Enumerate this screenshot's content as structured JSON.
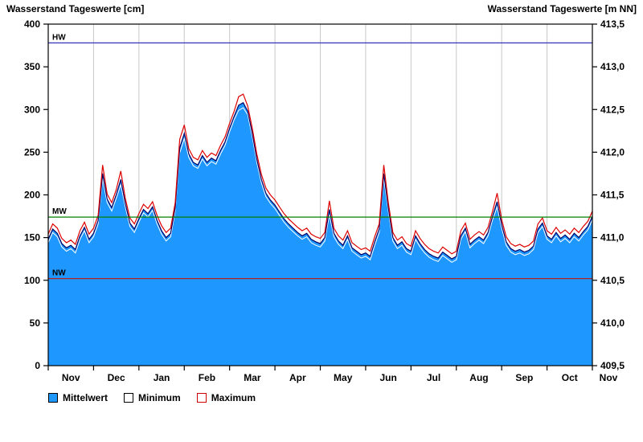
{
  "chart_data": {
    "type": "area",
    "title_left": "Wasserstand Tageswerte [cm]",
    "title_right": "Wasserstand Tageswerte [m NN]",
    "x_axis": {
      "month_labels": [
        "Nov",
        "Dec",
        "Jan",
        "Feb",
        "Mar",
        "Apr",
        "May",
        "Jun",
        "Jul",
        "Aug",
        "Sep",
        "Oct",
        "Nov"
      ]
    },
    "y_axis_left": {
      "unit": "cm",
      "min": 0,
      "max": 400,
      "step": 50,
      "tick_labels": [
        "0",
        "50",
        "100",
        "150",
        "200",
        "250",
        "300",
        "350",
        "400"
      ]
    },
    "y_axis_right": {
      "unit": "m NN",
      "min": 409.5,
      "max": 413.5,
      "step": 0.5,
      "tick_labels": [
        "409,5",
        "410,0",
        "410,5",
        "411,0",
        "411,5",
        "412,0",
        "412,5",
        "413,0",
        "413,5"
      ]
    },
    "reference_lines": [
      {
        "name": "HW",
        "value": 378,
        "color": "#3333bb"
      },
      {
        "name": "MW",
        "value": 174,
        "color": "#008000"
      },
      {
        "name": "NW",
        "value": 102,
        "color": "#b22222"
      }
    ],
    "colors": {
      "grid": "#c8c8c8",
      "border": "#000000",
      "background": "#ffffff"
    },
    "series": [
      {
        "name": "Mittelwert",
        "style": "area",
        "color": "#1e97ff",
        "line_color": "#000066",
        "values": [
          148,
          160,
          155,
          143,
          138,
          141,
          136,
          152,
          162,
          148,
          155,
          170,
          225,
          195,
          185,
          200,
          218,
          190,
          167,
          160,
          172,
          183,
          178,
          186,
          170,
          158,
          150,
          155,
          185,
          255,
          272,
          248,
          238,
          235,
          246,
          238,
          243,
          240,
          252,
          262,
          278,
          292,
          305,
          308,
          298,
          272,
          242,
          218,
          202,
          194,
          188,
          180,
          172,
          166,
          161,
          156,
          152,
          155,
          148,
          145,
          143,
          150,
          183,
          155,
          146,
          141,
          152,
          138,
          134,
          130,
          132,
          128,
          145,
          160,
          225,
          185,
          150,
          141,
          145,
          137,
          134,
          152,
          143,
          136,
          131,
          128,
          126,
          133,
          129,
          125,
          128,
          152,
          161,
          142,
          147,
          151,
          147,
          156,
          175,
          192,
          165,
          145,
          137,
          134,
          136,
          133,
          135,
          140,
          160,
          167,
          152,
          148,
          156,
          149,
          153,
          148,
          155,
          150,
          157,
          163,
          175
        ]
      },
      {
        "name": "Minimum",
        "style": "line",
        "color": "#ffffff",
        "values": [
          144,
          156,
          151,
          139,
          134,
          137,
          132,
          148,
          158,
          144,
          151,
          166,
          219,
          191,
          181,
          196,
          212,
          186,
          163,
          156,
          168,
          179,
          174,
          182,
          166,
          154,
          146,
          151,
          181,
          249,
          266,
          244,
          234,
          231,
          242,
          234,
          239,
          236,
          248,
          258,
          274,
          288,
          299,
          302,
          294,
          268,
          238,
          214,
          198,
          190,
          184,
          176,
          168,
          162,
          157,
          152,
          148,
          151,
          144,
          141,
          139,
          146,
          177,
          151,
          142,
          137,
          148,
          134,
          130,
          126,
          128,
          124,
          141,
          156,
          219,
          181,
          146,
          137,
          141,
          133,
          130,
          148,
          139,
          132,
          127,
          124,
          122,
          129,
          125,
          121,
          124,
          148,
          157,
          138,
          143,
          147,
          143,
          152,
          171,
          186,
          161,
          141,
          133,
          130,
          132,
          129,
          131,
          136,
          156,
          163,
          148,
          144,
          152,
          145,
          149,
          144,
          151,
          146,
          153,
          159,
          171
        ]
      },
      {
        "name": "Maximum",
        "style": "line",
        "color": "#dd0000",
        "values": [
          154,
          166,
          161,
          149,
          144,
          147,
          142,
          158,
          168,
          154,
          161,
          176,
          235,
          201,
          191,
          206,
          228,
          196,
          173,
          166,
          178,
          189,
          184,
          192,
          176,
          164,
          156,
          161,
          191,
          265,
          282,
          254,
          244,
          241,
          252,
          244,
          249,
          246,
          258,
          268,
          284,
          298,
          315,
          318,
          304,
          278,
          248,
          224,
          208,
          200,
          194,
          186,
          178,
          172,
          167,
          162,
          158,
          161,
          154,
          151,
          149,
          156,
          193,
          161,
          152,
          147,
          158,
          144,
          140,
          136,
          138,
          134,
          151,
          166,
          235,
          191,
          156,
          147,
          151,
          143,
          140,
          158,
          149,
          142,
          137,
          134,
          132,
          139,
          135,
          131,
          134,
          158,
          167,
          148,
          153,
          157,
          153,
          162,
          181,
          202,
          171,
          151,
          143,
          140,
          142,
          139,
          141,
          146,
          166,
          173,
          158,
          154,
          162,
          155,
          159,
          154,
          161,
          156,
          163,
          169,
          181
        ]
      }
    ],
    "legend": [
      {
        "label": "Mittelwert",
        "swatch_fill": "#1e97ff",
        "swatch_border": "#000000"
      },
      {
        "label": "Minimum",
        "swatch_fill": "#ffffff",
        "swatch_border": "#000000"
      },
      {
        "label": "Maximum",
        "swatch_fill": "#ffffff",
        "swatch_border": "#cc0000"
      }
    ]
  }
}
